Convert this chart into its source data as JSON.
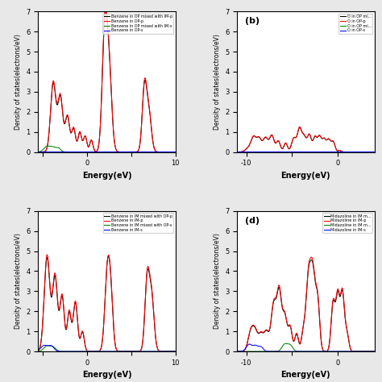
{
  "panels": {
    "a": {
      "legend": [
        "Benzene in OP-s",
        "Benzene in OP-p",
        "Benzene in OP mixed with IM-s",
        "Benzene in OP mixed with IM-p"
      ],
      "colors": [
        "blue",
        "red",
        "green",
        "black"
      ],
      "xlim": [
        -5.5,
        10
      ],
      "ylim": [
        0,
        7
      ],
      "xticks": [
        -5,
        0,
        5,
        10
      ],
      "xticklabels": [
        "",
        "0",
        "",
        "10"
      ],
      "xlabel": "Energy(eV)",
      "ylabel": "Density of states(electrons/eV)",
      "label": ""
    },
    "b": {
      "legend": [
        "O in OP-s",
        "O in OP-p",
        "O in OP mi...",
        "O in OP mi..."
      ],
      "colors": [
        "blue",
        "red",
        "green",
        "black"
      ],
      "xlim": [
        -11,
        4
      ],
      "ylim": [
        0,
        7
      ],
      "xticks": [
        -10,
        -5,
        0
      ],
      "xticklabels": [
        "-10",
        "",
        "0"
      ],
      "xlabel": "Energy(eV)",
      "ylabel": "Density of states(electrons/eV)",
      "label": "(b)"
    },
    "c": {
      "legend": [
        "Benzene in IM-s",
        "Benzene in IM-p",
        "Benzene in IM mixed with OP-s",
        "Benzene in IM mixed with OP-p"
      ],
      "colors": [
        "blue",
        "red",
        "green",
        "black"
      ],
      "xlim": [
        -5.5,
        10
      ],
      "ylim": [
        0,
        7
      ],
      "xticks": [
        -5,
        0,
        5,
        10
      ],
      "xticklabels": [
        "",
        "0",
        "",
        "10"
      ],
      "xlabel": "Energy(eV)",
      "ylabel": "Density of states(electrons/eV)",
      "label": ""
    },
    "d": {
      "legend": [
        "Midazoline in IM-s",
        "Midazoline in IM-p",
        "Midazoline in IM m...",
        "Midazoline in IM m..."
      ],
      "colors": [
        "blue",
        "red",
        "green",
        "black"
      ],
      "xlim": [
        -11,
        4
      ],
      "ylim": [
        0,
        7
      ],
      "xticks": [
        -10,
        -5,
        0
      ],
      "xticklabels": [
        "-10",
        "",
        "0"
      ],
      "xlabel": "Energy(eV)",
      "ylabel": "Density of states(electrons/eV)",
      "label": "(d)"
    }
  },
  "background": "#f0f0f0"
}
